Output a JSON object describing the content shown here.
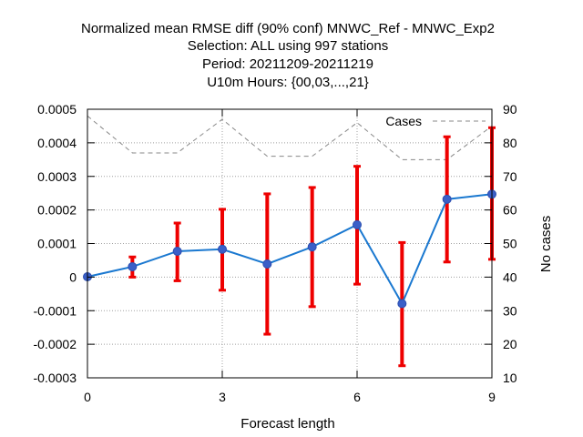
{
  "chart_data": {
    "type": "line",
    "title_lines": [
      "Normalized mean RMSE diff (90% conf) MNWC_Ref - MNWC_Exp2",
      "Selection: ALL using   997 stations",
      "Period: 20211209-20211219",
      "U10m   Hours: {00,03,...,21}"
    ],
    "xlabel": "Forecast length",
    "ylabel_right": "No cases",
    "x": [
      0,
      1,
      2,
      3,
      4,
      5,
      6,
      7,
      8,
      9
    ],
    "xlim": [
      0,
      9
    ],
    "ylim": [
      -0.0003,
      0.0005
    ],
    "ylim_right": [
      10,
      90
    ],
    "x_ticks": [
      "0",
      "3",
      "6",
      "9"
    ],
    "x_tick_values": [
      0,
      3,
      6,
      9
    ],
    "y_ticks": [
      "-0.0003",
      "-0.0002",
      "-0.0001",
      "0",
      "0.0001",
      "0.0002",
      "0.0003",
      "0.0004",
      "0.0005"
    ],
    "y_tick_values": [
      -0.0003,
      -0.0002,
      -0.0001,
      0,
      0.0001,
      0.0002,
      0.0003,
      0.0004,
      0.0005
    ],
    "y2_ticks": [
      "10",
      "20",
      "30",
      "40",
      "50",
      "60",
      "70",
      "80",
      "90"
    ],
    "y2_tick_values": [
      10,
      20,
      30,
      40,
      50,
      60,
      70,
      80,
      90
    ],
    "series": [
      {
        "values": [
          1e-06,
          3.1e-05,
          7.7e-05,
          8.3e-05,
          3.9e-05,
          9e-05,
          0.000156,
          -7.9e-05,
          0.000232,
          0.000247
        ],
        "color": "#1a78d0",
        "marker_color": "#3a5fc8"
      },
      {
        "name": "Cases",
        "axis": "right",
        "values": [
          88,
          77,
          77,
          87,
          76,
          76,
          86,
          75,
          75,
          85
        ],
        "color": "#888888",
        "style": "dashed"
      }
    ],
    "error_bars": {
      "color": "#ee0000",
      "lower": [
        0,
        0,
        -1.1e-05,
        -3.9e-05,
        -0.00017,
        -8.8e-05,
        -2.1e-05,
        -0.000264,
        4.5e-05,
        5.3e-05
      ],
      "upper": [
        0,
        6e-05,
        0.000161,
        0.000202,
        0.000248,
        0.000267,
        0.00033,
        0.000103,
        0.000418,
        0.000445
      ]
    },
    "legend": {
      "position": "top-right",
      "label": "Cases"
    },
    "grid": true
  }
}
